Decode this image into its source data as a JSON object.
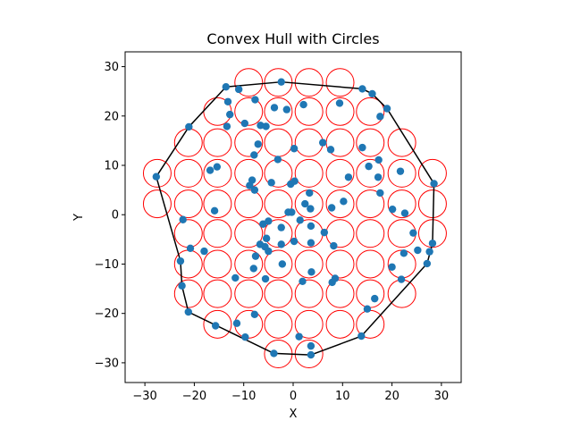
{
  "chart_data": {
    "type": "scatter",
    "title": "Convex Hull with Circles",
    "xlabel": "X",
    "ylabel": "Y",
    "xlim": [
      -34,
      34
    ],
    "ylim": [
      -34,
      33
    ],
    "x_ticks": [
      -30,
      -20,
      -10,
      0,
      10,
      20,
      30
    ],
    "y_ticks": [
      -30,
      -20,
      -10,
      0,
      10,
      20,
      30
    ],
    "aspect": "equal",
    "grid": false,
    "legend": null,
    "colors": {
      "points": "#1f77b4",
      "circles": "#ff0000",
      "hull": "#000000"
    },
    "circle_radius": 2.8,
    "circle_centers": [
      [
        -9,
        26.8
      ],
      [
        -3,
        26.8
      ],
      [
        3.2,
        26.8
      ],
      [
        9.5,
        26.8
      ],
      [
        -15.3,
        20.9
      ],
      [
        -9,
        20.9
      ],
      [
        -3,
        20.9
      ],
      [
        3.2,
        20.9
      ],
      [
        9.5,
        20.9
      ],
      [
        15.6,
        20.9
      ],
      [
        -21.2,
        14.6
      ],
      [
        -15.3,
        14.6
      ],
      [
        -9,
        14.6
      ],
      [
        -3,
        14.6
      ],
      [
        3.2,
        14.6
      ],
      [
        9.5,
        14.6
      ],
      [
        15.6,
        14.6
      ],
      [
        22,
        14.6
      ],
      [
        -27.5,
        8.4
      ],
      [
        -21.2,
        8.4
      ],
      [
        -15.3,
        8.4
      ],
      [
        -9,
        8.4
      ],
      [
        -3,
        8.4
      ],
      [
        3.2,
        8.4
      ],
      [
        9.5,
        8.4
      ],
      [
        15.6,
        8.4
      ],
      [
        22,
        8.4
      ],
      [
        28.2,
        8.4
      ],
      [
        -27.5,
        2.2
      ],
      [
        -21.2,
        2.2
      ],
      [
        -15.3,
        2.2
      ],
      [
        -9,
        2.2
      ],
      [
        -3,
        2.2
      ],
      [
        3.2,
        2.2
      ],
      [
        9.5,
        2.2
      ],
      [
        15.6,
        2.2
      ],
      [
        22,
        2.2
      ],
      [
        28.2,
        2.2
      ],
      [
        -21.2,
        -3.8
      ],
      [
        -15.3,
        -3.8
      ],
      [
        -9,
        -3.8
      ],
      [
        -3,
        -3.8
      ],
      [
        3.2,
        -3.8
      ],
      [
        9.5,
        -3.8
      ],
      [
        15.6,
        -3.8
      ],
      [
        22,
        -3.8
      ],
      [
        28.2,
        -3.8
      ],
      [
        -21.2,
        -10
      ],
      [
        -15.3,
        -10
      ],
      [
        -9,
        -10
      ],
      [
        -3,
        -10
      ],
      [
        3.2,
        -10
      ],
      [
        9.5,
        -10
      ],
      [
        15.6,
        -10
      ],
      [
        22,
        -10
      ],
      [
        -21.2,
        -16
      ],
      [
        -15.3,
        -16
      ],
      [
        -9,
        -16
      ],
      [
        -3,
        -16
      ],
      [
        3.2,
        -16
      ],
      [
        9.5,
        -16
      ],
      [
        15.6,
        -16
      ],
      [
        22,
        -16
      ],
      [
        -15.3,
        -22.2
      ],
      [
        -9,
        -22.2
      ],
      [
        -3,
        -22.2
      ],
      [
        3.2,
        -22.2
      ],
      [
        9.5,
        -22.2
      ],
      [
        15.6,
        -22.2
      ],
      [
        -3,
        -28.2
      ],
      [
        3.2,
        -28.2
      ]
    ],
    "points": [
      [
        -27.7,
        7.7
      ],
      [
        -21.1,
        17.8
      ],
      [
        -13.6,
        25.9
      ],
      [
        -11,
        25.4
      ],
      [
        -2.4,
        26.9
      ],
      [
        14,
        25.5
      ],
      [
        16,
        24.5
      ],
      [
        19,
        21.5
      ],
      [
        28.5,
        6.3
      ],
      [
        28.2,
        -5.8
      ],
      [
        27.1,
        -9.9
      ],
      [
        13.8,
        -24.6
      ],
      [
        3.6,
        -28.4
      ],
      [
        -3.9,
        -28.1
      ],
      [
        -21.2,
        -19.7
      ],
      [
        -22.5,
        -14.4
      ],
      [
        -22.8,
        -9.4
      ],
      [
        -22.3,
        -1
      ],
      [
        -13.2,
        22.9
      ],
      [
        -12.8,
        20.3
      ],
      [
        -9.8,
        18.5
      ],
      [
        -7.7,
        23.3
      ],
      [
        -6.6,
        18.1
      ],
      [
        -5.5,
        17.9
      ],
      [
        -3.8,
        21.7
      ],
      [
        -1.3,
        21.3
      ],
      [
        2.1,
        22.3
      ],
      [
        9.4,
        22.6
      ],
      [
        17.6,
        19.9
      ],
      [
        -13.4,
        17.9
      ],
      [
        -7.1,
        14.3
      ],
      [
        -7.9,
        12.1
      ],
      [
        -3.1,
        11.2
      ],
      [
        0.2,
        13.4
      ],
      [
        6,
        14.6
      ],
      [
        7.6,
        13.2
      ],
      [
        14,
        13.6
      ],
      [
        17.3,
        11.1
      ],
      [
        15.3,
        9.8
      ],
      [
        21.7,
        8.8
      ],
      [
        -16.8,
        9
      ],
      [
        -15.4,
        9.7
      ],
      [
        -8.3,
        7
      ],
      [
        -8.8,
        5.9
      ],
      [
        -7.8,
        5
      ],
      [
        -4.4,
        6.5
      ],
      [
        -0.5,
        6.2
      ],
      [
        0.3,
        6.8
      ],
      [
        11.2,
        7.6
      ],
      [
        17.2,
        7.6
      ],
      [
        17.6,
        4.4
      ],
      [
        -15.9,
        0.8
      ],
      [
        -1,
        0.5
      ],
      [
        -0.3,
        0.5
      ],
      [
        2.4,
        2.2
      ],
      [
        3.3,
        4.4
      ],
      [
        3.5,
        1.2
      ],
      [
        7.8,
        1.4
      ],
      [
        10.2,
        2.7
      ],
      [
        20.1,
        1.1
      ],
      [
        22.6,
        0.3
      ],
      [
        -20.8,
        -6.8
      ],
      [
        -18,
        -7.4
      ],
      [
        -6.1,
        -1.9
      ],
      [
        -5,
        -1.3
      ],
      [
        -5.4,
        -4.8
      ],
      [
        -2.4,
        -2.6
      ],
      [
        1.4,
        -1.1
      ],
      [
        3.6,
        -2.3
      ],
      [
        6.3,
        -3.6
      ],
      [
        -6.7,
        -6
      ],
      [
        -5.7,
        -6.5
      ],
      [
        -5,
        -7.4
      ],
      [
        -7.6,
        -8.4
      ],
      [
        -2.4,
        -6
      ],
      [
        0.2,
        -5.4
      ],
      [
        3.6,
        -5.7
      ],
      [
        8.2,
        -6.3
      ],
      [
        24.3,
        -3.7
      ],
      [
        25.2,
        -7.2
      ],
      [
        22.4,
        -7.8
      ],
      [
        -8,
        -10.9
      ],
      [
        -11.7,
        -12.8
      ],
      [
        -5.6,
        -13
      ],
      [
        -2.2,
        -10
      ],
      [
        3.7,
        -11.6
      ],
      [
        1.9,
        -13.5
      ],
      [
        7.9,
        -13.7
      ],
      [
        8.5,
        -12.9
      ],
      [
        20,
        -10.6
      ],
      [
        21.9,
        -13.1
      ],
      [
        16.5,
        -17
      ],
      [
        15,
        -19.1
      ],
      [
        -15.7,
        -22.5
      ],
      [
        -11.4,
        -22
      ],
      [
        -7.8,
        -20.2
      ],
      [
        -9.7,
        -24.8
      ],
      [
        1.2,
        -24.7
      ],
      [
        3.6,
        -26.6
      ],
      [
        27.6,
        -7.5
      ]
    ],
    "hull": [
      [
        -27.7,
        7.7
      ],
      [
        -21.1,
        17.8
      ],
      [
        -13.6,
        25.9
      ],
      [
        -2.4,
        26.9
      ],
      [
        14,
        25.5
      ],
      [
        16,
        24.5
      ],
      [
        19,
        21.5
      ],
      [
        28.5,
        6.3
      ],
      [
        28.2,
        -5.8
      ],
      [
        27.1,
        -9.9
      ],
      [
        13.8,
        -24.6
      ],
      [
        3.6,
        -28.4
      ],
      [
        -3.9,
        -28.1
      ],
      [
        -21.2,
        -19.7
      ],
      [
        -22.5,
        -14.4
      ],
      [
        -22.8,
        -9.4
      ],
      [
        -27.7,
        7.7
      ]
    ]
  }
}
